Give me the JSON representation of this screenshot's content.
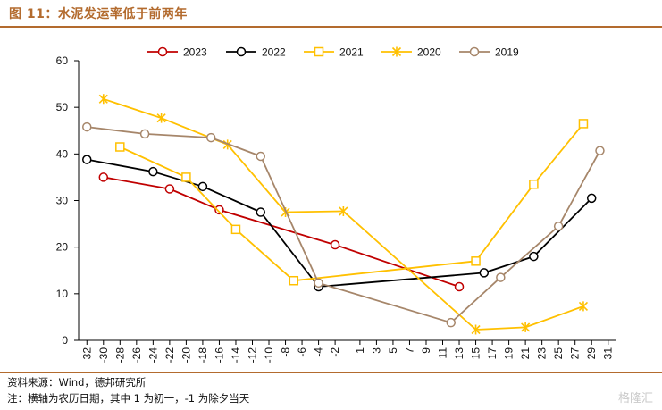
{
  "header": {
    "title": "图 11：水泥发运率低于前两年"
  },
  "footer": {
    "source": "资料来源：Wind，德邦研究所",
    "note": "注：横轴为农历日期，其中 1 为初一，-1 为除夕当天",
    "watermark": "格隆汇"
  },
  "colors": {
    "title": "#b36b2e",
    "s2023": "#c00000",
    "s2022": "#000000",
    "s2021": "#ffc000",
    "s2020": "#ffc000",
    "s2019": "#a6866a"
  },
  "chart_data": {
    "type": "line",
    "title": "",
    "xlabel": "",
    "ylabel": "",
    "xlim": [
      -33,
      32
    ],
    "ylim": [
      0,
      60
    ],
    "yticks": [
      0,
      10,
      20,
      30,
      40,
      50,
      60
    ],
    "xticks": [
      -32,
      -30,
      -28,
      -26,
      -24,
      -22,
      -20,
      -18,
      -16,
      -14,
      -12,
      -10,
      -8,
      -6,
      -4,
      -2,
      1,
      3,
      5,
      7,
      9,
      11,
      13,
      15,
      17,
      19,
      21,
      23,
      25,
      27,
      29,
      31
    ],
    "grid": false,
    "legend_position": "top",
    "series": [
      {
        "name": "2023",
        "marker": "circle",
        "color": "#c00000",
        "x": [
          -30,
          -22,
          -16,
          -2,
          13
        ],
        "y": [
          35,
          32.5,
          28,
          20.5,
          11.5
        ]
      },
      {
        "name": "2022",
        "marker": "circle",
        "color": "#000000",
        "x": [
          -32,
          -24,
          -18,
          -11,
          -4,
          16,
          22,
          29
        ],
        "y": [
          38.8,
          36.2,
          33,
          27.5,
          11.5,
          14.5,
          18,
          30.5
        ]
      },
      {
        "name": "2021",
        "marker": "square",
        "color": "#ffc000",
        "x": [
          -28,
          -20,
          -14,
          -7,
          15,
          22,
          28
        ],
        "y": [
          41.5,
          35,
          23.8,
          12.8,
          17,
          33.5,
          46.5
        ]
      },
      {
        "name": "2020",
        "marker": "star",
        "color": "#ffc000",
        "x": [
          -30,
          -23,
          -15,
          -8,
          -1,
          15,
          21,
          28
        ],
        "y": [
          51.8,
          47.7,
          42,
          27.5,
          27.7,
          2.3,
          2.8,
          7.3
        ]
      },
      {
        "name": "2019",
        "marker": "circle",
        "color": "#a6866a",
        "x": [
          -32,
          -25,
          -17,
          -11,
          -4,
          12,
          18,
          25,
          30
        ],
        "y": [
          45.8,
          44.3,
          43.5,
          39.5,
          12.3,
          3.8,
          13.5,
          24.5,
          40.7
        ]
      }
    ]
  }
}
